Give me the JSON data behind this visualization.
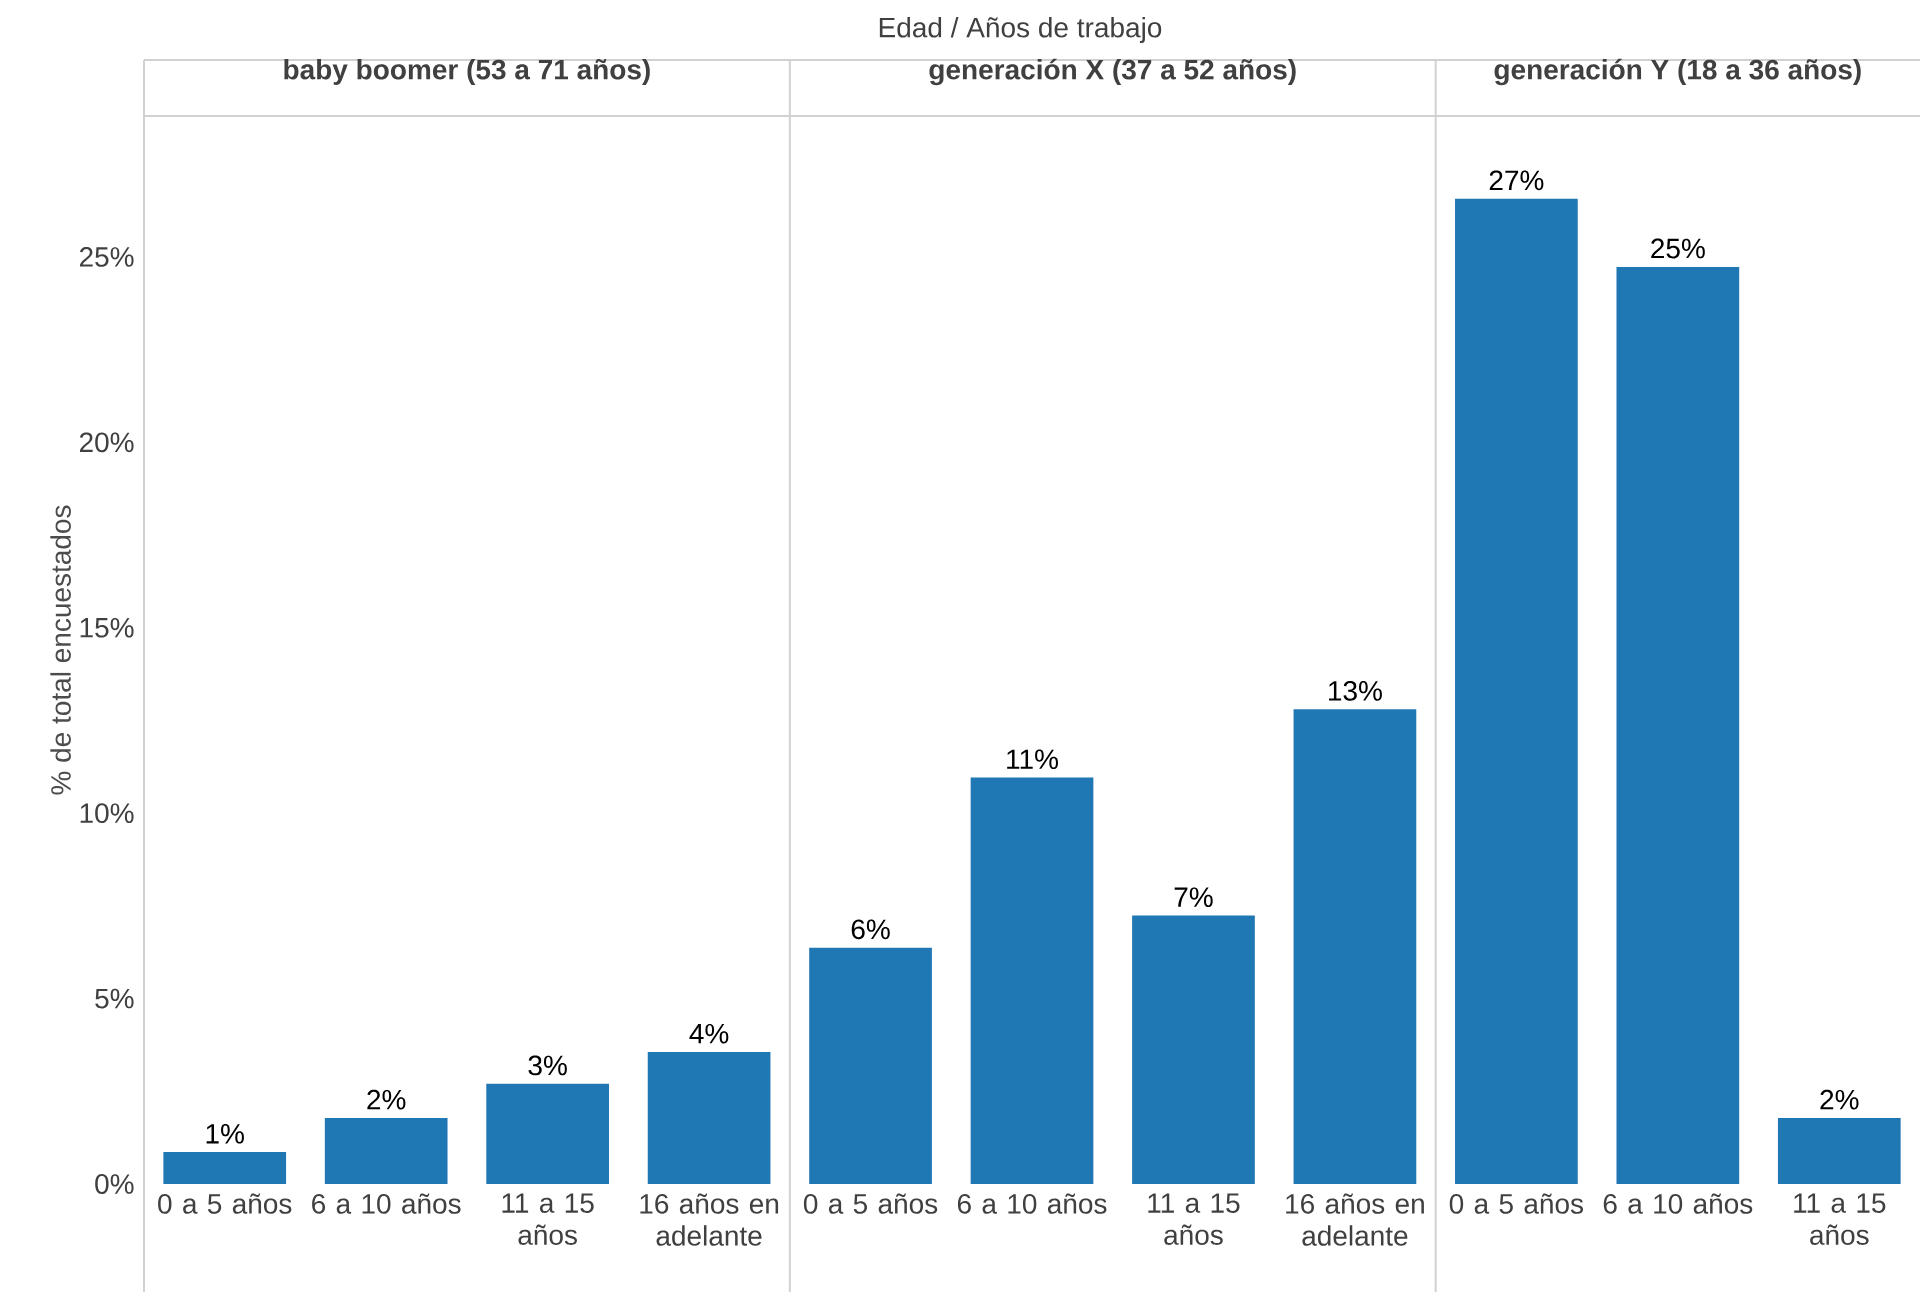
{
  "chart_data": [
    {
      "type": "bar",
      "title": "baby boomer (53 a 71 años)",
      "xlabel": "Edad  /  Años de trabajo",
      "ylabel": "% de total encuestados",
      "categories": [
        "0 a 5 años",
        "6 a 10 años",
        "11 a 15 años",
        "16 años en adelante"
      ],
      "values": [
        0.86,
        1.78,
        2.7,
        3.56
      ],
      "value_labels": [
        "1%",
        "2%",
        "3%",
        "4%"
      ],
      "color": "#1f77b4",
      "ylim": [
        0,
        28.8
      ],
      "yticks": [
        {
          "value": 0,
          "label": "0%"
        },
        {
          "value": 5,
          "label": "5%"
        },
        {
          "value": 10,
          "label": "10%"
        },
        {
          "value": 15,
          "label": "15%"
        },
        {
          "value": 20,
          "label": "20%"
        },
        {
          "value": 25,
          "label": "25%"
        }
      ]
    },
    {
      "type": "bar",
      "title": "generación X (37 a 52 años)",
      "categories": [
        "0 a 5 años",
        "6 a 10 años",
        "11 a 15 años",
        "16 años en adelante"
      ],
      "values": [
        6.37,
        10.96,
        7.24,
        12.8
      ],
      "value_labels": [
        "6%",
        "11%",
        "7%",
        "13%"
      ],
      "color": "#1f77b4",
      "ylim": [
        0,
        28.8
      ],
      "tick_labels": "x"
    },
    {
      "type": "bar",
      "title": "generación Y (18 a 36 años)",
      "categories": [
        "0 a 5 años",
        "6 a 10 años",
        "11 a 15 años"
      ],
      "values": [
        26.57,
        24.73,
        1.78
      ],
      "value_labels": [
        "27%",
        "25%",
        "2%"
      ],
      "color": "#1f77b4",
      "ylim": [
        0,
        28.8
      ],
      "tick_labels": "x"
    }
  ]
}
